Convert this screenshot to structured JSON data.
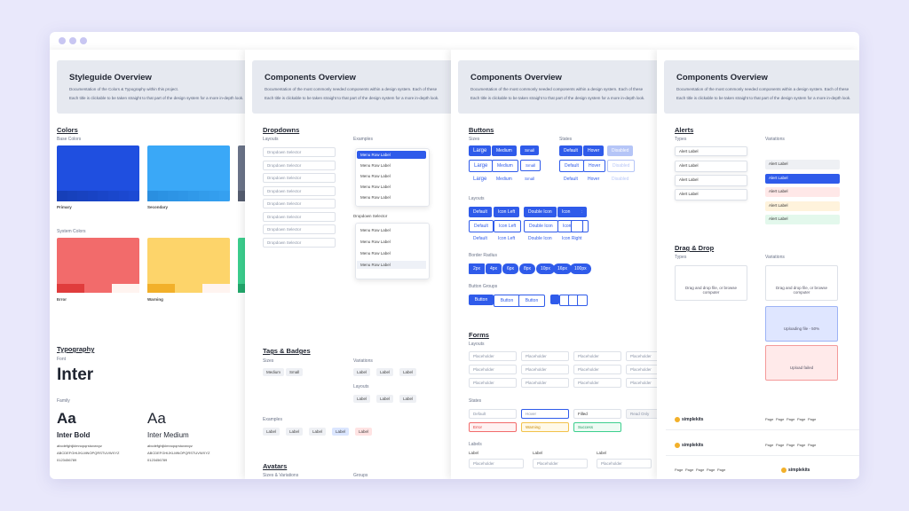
{
  "styleguide": {
    "title": "Styleguide Overview",
    "description": [
      "Documentation of the Colors & Typography within this project.",
      "Each title is clickable to be taken straight to that part of the design system for a more in-depth look."
    ],
    "colors": {
      "heading": "Colors",
      "base_label": "Base Colors",
      "base": [
        "Primary",
        "Secondary"
      ],
      "system_label": "System Colors",
      "system": [
        "Error",
        "Warning"
      ]
    },
    "typography": {
      "heading": "Typography",
      "font_label": "Font",
      "font": "Inter",
      "family_label": "Family",
      "families": [
        {
          "glyph": "Aa",
          "name": "Inter Bold",
          "samples": [
            "abcdefghijklmnopqrstuvwxyz",
            "ABCDEFGHIJKLMNOPQRSTUVWXYZ",
            "0123456789"
          ]
        },
        {
          "glyph": "Aa",
          "name": "Inter Medium",
          "samples": [
            "abcdefghijklmnopqrstuvwxyz",
            "ABCDEFGHIJKLMNOPQRSTUVWXYZ",
            "0123456789"
          ]
        }
      ]
    }
  },
  "dropdowns_panel": {
    "title": "Components Overview",
    "description": [
      "Documentation of the most commonly needed components within a design system. Each of these",
      "Each title is clickable to be taken straight to that part of the design system for a more in-depth look."
    ],
    "dropdowns": {
      "heading": "Dropdowns",
      "layouts_label": "Layouts",
      "examples_label": "Examples",
      "selectors": [
        "Dropdown Selector",
        "Dropdown Selector",
        "Dropdown Selector",
        "Dropdown Selector",
        "Dropdown Selector",
        "Dropdown Selector",
        "Dropdown Selector",
        "Dropdown Selector"
      ],
      "menu_1": [
        "Menu Row Label",
        "Menu Row Label",
        "Menu Row Label",
        "Menu Row Label",
        "Menu Row Label"
      ],
      "example_selector": "Dropdown Selector",
      "menu_2": [
        "Menu Row Label",
        "Menu Row Label",
        "Menu Row Label",
        "Menu Row Label"
      ]
    },
    "tags": {
      "heading": "Tags & Badges",
      "sizes_label": "Sizes",
      "sizes": [
        "Medium",
        "Small"
      ],
      "variations_label": "Variations",
      "variations": [
        "Label",
        "Label",
        "Label"
      ],
      "layouts_label": "Layouts",
      "layouts": [
        "Label",
        "Label",
        "Label"
      ],
      "examples_label": "Examples",
      "examples": [
        "Label",
        "Label",
        "Label",
        "Label",
        "Label"
      ]
    },
    "avatars": {
      "heading": "Avatars",
      "sizes_label": "Sizes & Variations",
      "groups_label": "Groups"
    }
  },
  "buttons_panel": {
    "title": "Components Overview",
    "description": [
      "Documentation of the most commonly needed components within a design system. Each of these",
      "Each title is clickable to be taken straight to that part of the design system for a more in-depth look."
    ],
    "buttons": {
      "heading": "Buttons",
      "sizes_label": "Sizes",
      "sizes": [
        "Large",
        "Medium",
        "Small"
      ],
      "states_label": "States",
      "states": [
        "Default",
        "Hover",
        "Disabled"
      ],
      "layouts_label": "Layouts",
      "layouts": [
        "Default",
        "Icon Left",
        "Double Icon",
        "Icon Right"
      ],
      "radius_label": "Border Radius",
      "radii": [
        "2px",
        "4px",
        "6px",
        "8px",
        "10px",
        "16px",
        "100px"
      ],
      "groups_label": "Button Groups",
      "group": [
        "Button",
        "Button",
        "Button"
      ]
    },
    "forms": {
      "heading": "Forms",
      "layouts_label": "Layouts",
      "placeholder": "Placeholder",
      "states_label": "States",
      "states": [
        "Default",
        "Hover",
        "Filled",
        "Read Only",
        "Error",
        "Warning",
        "Success"
      ],
      "labels_label": "Labels",
      "label": "Label"
    }
  },
  "alerts_panel": {
    "title": "Components Overview",
    "description": [
      "Documentation of the most commonly needed components within a design system. Each of these",
      "Each title is clickable to be taken straight to that part of the design system for a more in-depth look."
    ],
    "alerts": {
      "heading": "Alerts",
      "types_label": "Types",
      "variations_label": "Variations",
      "alert": "Alert Label"
    },
    "drag_drop": {
      "heading": "Drag & Drop",
      "types_label": "Types",
      "variations_label": "Variations",
      "prompt": "Drag and drop file, or browse computer",
      "uploading": "Uploading file - 50%",
      "failed": "Upload failed"
    },
    "navbar": {
      "brand": "simplekits",
      "link": "Page"
    }
  }
}
